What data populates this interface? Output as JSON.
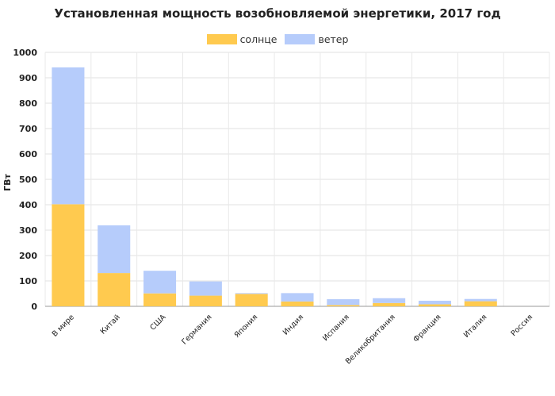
{
  "chart_data": {
    "type": "bar",
    "stacked": true,
    "title": "Установленная мощность возобновляемой энергетики, 2017 год",
    "ylabel": "ГВт",
    "xlabel": "",
    "ylim": [
      0,
      1000
    ],
    "yticks": [
      0,
      100,
      200,
      300,
      400,
      500,
      600,
      700,
      800,
      900,
      1000
    ],
    "grid": true,
    "legend_position": "top-center",
    "categories": [
      "В мире",
      "Китай",
      "США",
      "Германия",
      "Япония",
      "Индия",
      "Испания",
      "Великобритания",
      "Франция",
      "Италия",
      "Россия"
    ],
    "series": [
      {
        "name": "солнце",
        "color": "#ffca4f",
        "values": [
          402,
          131,
          51,
          42,
          49,
          19,
          5,
          13,
          8,
          20,
          0
        ]
      },
      {
        "name": "ветер",
        "color": "#b6ccfb",
        "values": [
          539,
          188,
          89,
          56,
          3,
          33,
          23,
          19,
          14,
          9,
          0
        ]
      }
    ]
  }
}
